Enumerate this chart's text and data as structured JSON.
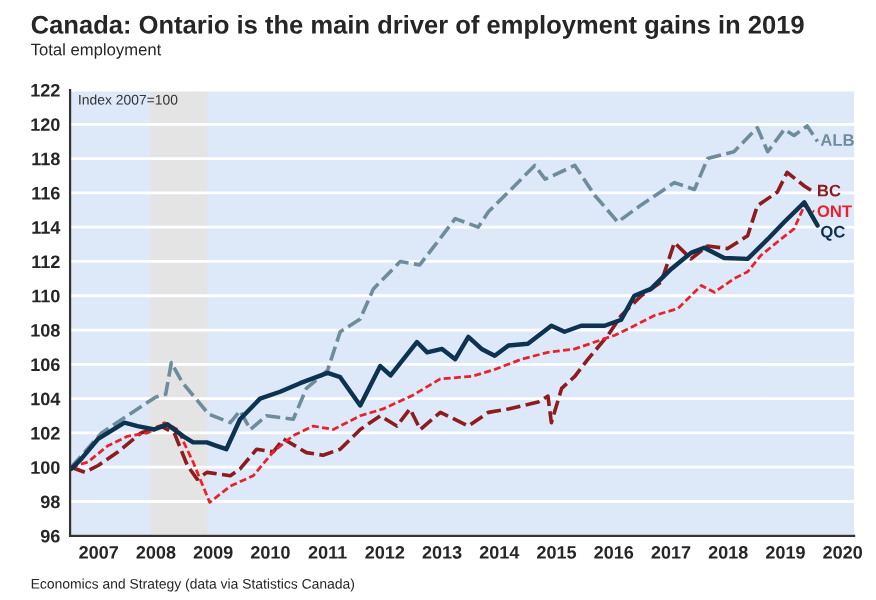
{
  "chart_data": {
    "type": "line",
    "title": "Canada: Ontario is the main driver of employment gains in 2019",
    "subtitle": "Total employment",
    "annotations": [
      "Index 2007=100",
      "Economics and Strategy (data via Statistics Canada)"
    ],
    "xlim": [
      2007.0,
      2020.7
    ],
    "xticks": [
      {
        "value": 2007.5,
        "label": "2007"
      },
      {
        "value": 2008.5,
        "label": "2008"
      },
      {
        "value": 2009.5,
        "label": "2009"
      },
      {
        "value": 2010.5,
        "label": "2010"
      },
      {
        "value": 2011.5,
        "label": "2011"
      },
      {
        "value": 2012.5,
        "label": "2012"
      },
      {
        "value": 2013.5,
        "label": "2013"
      },
      {
        "value": 2014.5,
        "label": "2014"
      },
      {
        "value": 2015.5,
        "label": "2015"
      },
      {
        "value": 2016.5,
        "label": "2016"
      },
      {
        "value": 2017.5,
        "label": "2017"
      },
      {
        "value": 2018.5,
        "label": "2018"
      },
      {
        "value": 2019.5,
        "label": "2019"
      },
      {
        "value": 2020.5,
        "label": "2020"
      }
    ],
    "ylim": [
      96,
      122
    ],
    "yticks": [
      96,
      98,
      100,
      102,
      104,
      106,
      108,
      110,
      112,
      114,
      116,
      118,
      120,
      122
    ],
    "grid": "y",
    "legend": false,
    "marker": "none",
    "bands": [
      {
        "axis": "x",
        "from": 2008.4,
        "to": 2009.4,
        "color": "#e4e4e4"
      }
    ],
    "series": [
      {
        "name": "ALB",
        "color": "#6f8c9c",
        "line_style": "dashed",
        "x": [
          2007.02,
          2007.55,
          2008.0,
          2008.5,
          2008.67,
          2008.77,
          2008.96,
          2009.42,
          2009.8,
          2009.97,
          2010.15,
          2010.43,
          2010.9,
          2011.13,
          2011.5,
          2011.72,
          2012.07,
          2012.3,
          2012.77,
          2013.11,
          2013.4,
          2013.73,
          2014.13,
          2014.31,
          2014.66,
          2015.12,
          2015.3,
          2015.82,
          2016.17,
          2016.57,
          2016.98,
          2017.56,
          2017.91,
          2018.14,
          2018.6,
          2019.01,
          2019.19,
          2019.48,
          2019.65,
          2019.88,
          2020.06
        ],
        "values": [
          100.0,
          102.0,
          103.0,
          104.1,
          104.25,
          106.1,
          104.95,
          103.1,
          102.6,
          103.3,
          102.2,
          103.0,
          102.8,
          104.6,
          105.65,
          107.9,
          108.65,
          110.4,
          112.0,
          111.8,
          113.05,
          114.5,
          114.0,
          114.9,
          116.05,
          117.6,
          116.8,
          117.6,
          115.85,
          114.3,
          115.3,
          116.6,
          116.2,
          118.0,
          118.4,
          119.8,
          118.4,
          119.7,
          119.35,
          119.9,
          119.0
        ]
      },
      {
        "name": "BC",
        "color": "#8e1b1e",
        "line_style": "dashed",
        "x": [
          2007.02,
          2007.26,
          2007.49,
          2007.84,
          2008.24,
          2008.59,
          2008.82,
          2009.05,
          2009.22,
          2009.39,
          2009.8,
          2009.97,
          2010.26,
          2010.55,
          2010.73,
          2011.13,
          2011.42,
          2011.72,
          2012.07,
          2012.42,
          2012.71,
          2012.94,
          2013.12,
          2013.47,
          2013.96,
          2014.31,
          2014.66,
          2015.18,
          2015.35,
          2015.41,
          2015.59,
          2015.82,
          2016.05,
          2016.4,
          2016.63,
          2016.98,
          2017.33,
          2017.56,
          2017.85,
          2018.14,
          2018.49,
          2018.84,
          2019.01,
          2019.36,
          2019.53,
          2019.83,
          2020.0
        ],
        "values": [
          100.0,
          99.7,
          100.1,
          100.9,
          102.0,
          102.4,
          102.0,
          100.1,
          99.3,
          99.7,
          99.5,
          99.9,
          101.05,
          100.9,
          101.65,
          100.85,
          100.7,
          101.05,
          102.2,
          103.0,
          102.4,
          103.4,
          102.2,
          103.2,
          102.4,
          103.2,
          103.4,
          103.8,
          104.15,
          102.6,
          104.6,
          105.3,
          106.3,
          107.7,
          108.85,
          110.0,
          110.8,
          113.1,
          112.15,
          112.9,
          112.75,
          113.5,
          115.25,
          116.05,
          117.2,
          116.4,
          116.05
        ]
      },
      {
        "name": "ONT",
        "color": "#e8222d",
        "line_style": "dotted",
        "x": [
          2007.02,
          2007.31,
          2007.66,
          2008.0,
          2008.36,
          2008.65,
          2008.88,
          2009.15,
          2009.44,
          2009.8,
          2010.2,
          2010.55,
          2010.9,
          2011.25,
          2011.6,
          2012.07,
          2012.47,
          2012.99,
          2013.47,
          2014.02,
          2014.42,
          2014.89,
          2015.35,
          2015.82,
          2016.17,
          2016.52,
          2016.86,
          2017.21,
          2017.62,
          2018.03,
          2018.26,
          2018.6,
          2018.84,
          2019.07,
          2019.42,
          2019.65,
          2019.83,
          2020.0
        ],
        "values": [
          100.0,
          100.3,
          101.25,
          101.8,
          102.0,
          102.6,
          102.2,
          100.3,
          97.95,
          98.9,
          99.5,
          100.9,
          101.85,
          102.4,
          102.2,
          103.0,
          103.4,
          104.2,
          105.15,
          105.3,
          105.7,
          106.3,
          106.7,
          106.9,
          107.3,
          107.7,
          108.25,
          108.85,
          109.25,
          110.6,
          110.2,
          111.0,
          111.4,
          112.35,
          113.3,
          113.9,
          115.25,
          114.9
        ]
      },
      {
        "name": "QC",
        "color": "#0d3350",
        "line_style": "solid",
        "x": [
          2007.02,
          2007.2,
          2007.49,
          2007.66,
          2007.95,
          2008.18,
          2008.47,
          2008.7,
          2008.98,
          2009.15,
          2009.39,
          2009.56,
          2009.73,
          2009.97,
          2010.32,
          2010.67,
          2011.02,
          2011.5,
          2011.72,
          2012.07,
          2012.42,
          2012.6,
          2013.06,
          2013.24,
          2013.5,
          2013.73,
          2013.96,
          2014.19,
          2014.42,
          2014.66,
          2015.0,
          2015.41,
          2015.64,
          2015.93,
          2016.34,
          2016.63,
          2016.86,
          2017.15,
          2017.5,
          2017.85,
          2018.08,
          2018.43,
          2018.84,
          2019.19,
          2019.48,
          2019.83,
          2020.06
        ],
        "values": [
          99.9,
          100.5,
          101.65,
          102.0,
          102.6,
          102.4,
          102.2,
          102.5,
          101.8,
          101.45,
          101.45,
          101.25,
          101.05,
          102.8,
          104.0,
          104.4,
          104.9,
          105.5,
          105.25,
          103.6,
          105.9,
          105.35,
          107.3,
          106.7,
          106.9,
          106.3,
          107.6,
          106.9,
          106.5,
          107.1,
          107.2,
          108.25,
          107.9,
          108.25,
          108.25,
          108.6,
          110.0,
          110.4,
          111.55,
          112.5,
          112.8,
          112.2,
          112.15,
          113.3,
          114.3,
          115.45,
          114.1
        ]
      }
    ]
  }
}
